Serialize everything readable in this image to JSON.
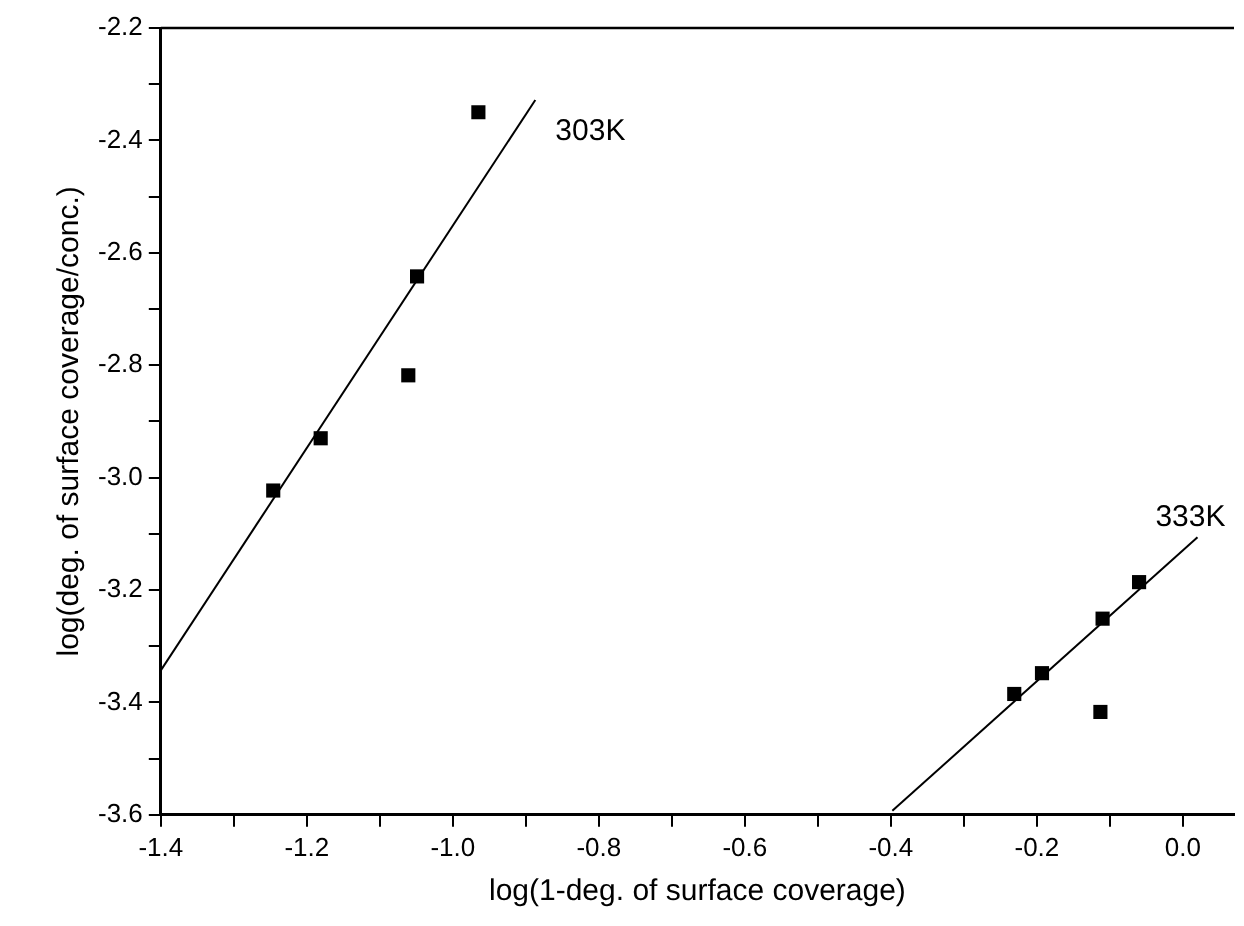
{
  "chart_data": {
    "type": "scatter",
    "xlabel": "log(1-deg. of surface coverage)",
    "ylabel": "log(deg. of surface coverage/conc.)",
    "xlim": [
      -1.4,
      0.07
    ],
    "ylim": [
      -3.6,
      -2.2
    ],
    "xticks": [
      -1.4,
      {
        "value": -1.3,
        "label": null
      },
      -1.2,
      {
        "value": -1.1,
        "label": null
      },
      {
        "value": -1.0,
        "label": "-1.0"
      },
      {
        "value": -0.9,
        "label": null
      },
      -0.8,
      {
        "value": -0.7,
        "label": null
      },
      -0.6,
      {
        "value": -0.5,
        "label": null
      },
      -0.4,
      {
        "value": -0.3,
        "label": null
      },
      -0.2,
      {
        "value": -0.1,
        "label": null
      },
      {
        "value": 0.0,
        "label": "0.0"
      }
    ],
    "yticks": [
      -3.6,
      {
        "value": -3.5,
        "label": null
      },
      -3.4,
      {
        "value": -3.3,
        "label": null
      },
      -3.2,
      {
        "value": -3.1,
        "label": null
      },
      {
        "value": -3.0,
        "label": "-3.0"
      },
      {
        "value": -2.9,
        "label": null
      },
      -2.8,
      {
        "value": -2.7,
        "label": null
      },
      -2.6,
      {
        "value": -2.5,
        "label": null
      },
      -2.4,
      {
        "value": -2.3,
        "label": null
      },
      -2.2
    ],
    "marker": "square",
    "grid": false,
    "legend": false,
    "series": [
      {
        "type": "scatter",
        "color": "#000000",
        "x": [
          -1.246,
          -1.181,
          -1.061,
          -1.049,
          -0.965
        ],
        "values": [
          -3.023,
          -2.93,
          -2.818,
          -2.642,
          -2.35
        ]
      },
      {
        "type": "line",
        "color": "#000000",
        "marker": "none",
        "x": [
          -1.4,
          -0.887
        ],
        "values": [
          -3.343,
          -2.328
        ]
      },
      {
        "type": "scatter",
        "color": "#000000",
        "x": [
          -0.231,
          -0.193,
          -0.11,
          -0.113,
          -0.06
        ],
        "values": [
          -3.385,
          -3.348,
          -3.251,
          -3.417,
          -3.186
        ]
      },
      {
        "type": "line",
        "color": "#000000",
        "marker": "none",
        "x": [
          -0.398,
          0.02
        ],
        "values": [
          -3.593,
          -3.106
        ]
      }
    ],
    "annotations": [
      "303K",
      "333K"
    ]
  }
}
